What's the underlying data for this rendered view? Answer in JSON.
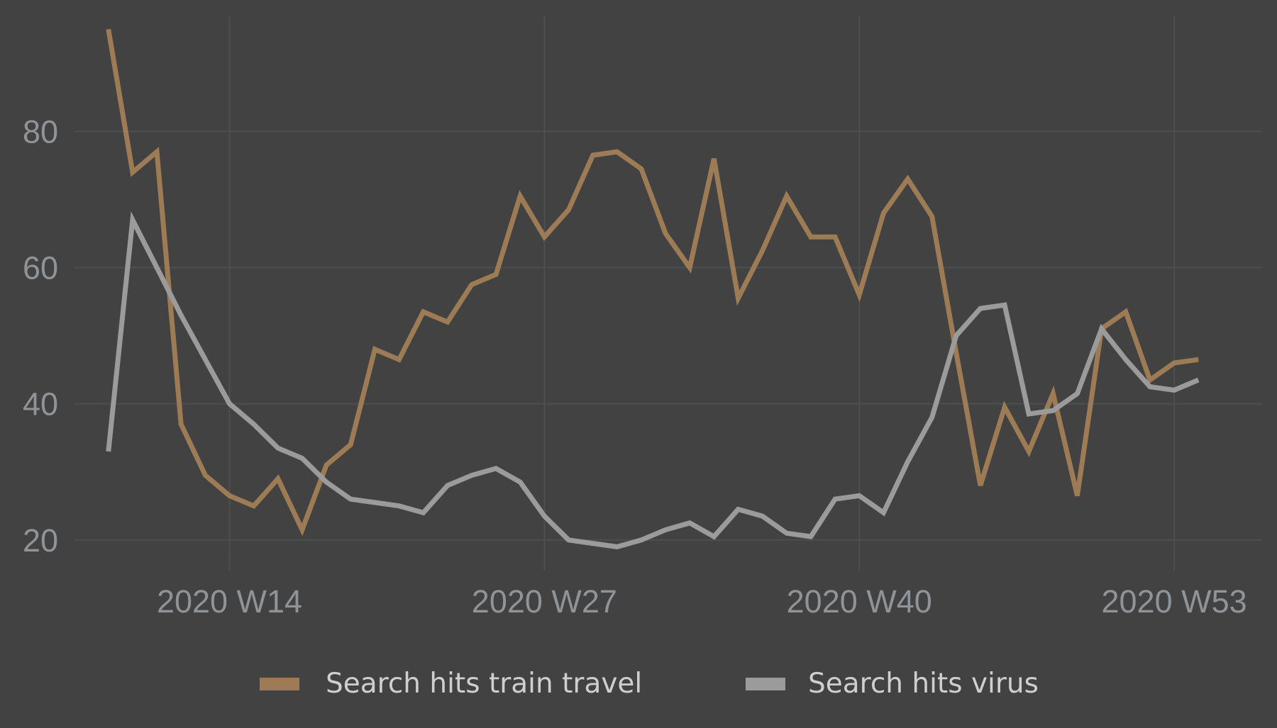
{
  "chart_data": {
    "type": "line",
    "title": "",
    "xlabel": "",
    "ylabel": "",
    "x_tick_labels": [
      "2020 W14",
      "2020 W27",
      "2020 W40",
      "2020 W53"
    ],
    "x_tick_weeks": [
      14,
      27,
      40,
      53
    ],
    "y_ticks": [
      20,
      40,
      60,
      80
    ],
    "xlim_weeks": [
      7.6,
      56.6
    ],
    "ylim": [
      15.5,
      97
    ],
    "grid": true,
    "legend_position": "bottom",
    "x_weeks": [
      9,
      10,
      11,
      12,
      13,
      14,
      15,
      16,
      17,
      18,
      19,
      20,
      21,
      22,
      23,
      24,
      25,
      26,
      27,
      28,
      29,
      30,
      31,
      32,
      33,
      34,
      35,
      36,
      37,
      38,
      39,
      40,
      41,
      42,
      43,
      44,
      45,
      46,
      47,
      48,
      49,
      50,
      51,
      52,
      53,
      54
    ],
    "series": [
      {
        "name": "Search hits train travel",
        "color": "#9d7b55",
        "values": [
          95,
          74,
          77,
          37,
          29.5,
          26.5,
          25,
          29,
          21.5,
          31,
          34,
          48,
          46.5,
          53.5,
          52,
          57.5,
          59,
          70.5,
          64.5,
          68.5,
          76.5,
          77,
          74.5,
          65,
          60,
          76,
          55.5,
          62.5,
          70.5,
          64.5,
          64.5,
          56,
          68,
          73,
          67.5,
          47.5,
          28,
          39.5,
          33,
          41.5,
          26.5,
          51,
          53.5,
          43.5,
          46,
          46.5
        ]
      },
      {
        "name": "Search hits virus",
        "color": "#9b9b9b",
        "values": [
          33,
          67,
          60,
          53,
          46.5,
          40,
          37,
          33.5,
          32,
          28.5,
          26,
          25.5,
          25,
          24,
          28,
          29.5,
          30.5,
          28.5,
          23.5,
          20,
          19.5,
          19,
          20,
          21.5,
          22.5,
          20.5,
          24.5,
          23.5,
          21,
          20.5,
          26,
          26.5,
          24,
          31.5,
          38,
          50,
          54,
          54.5,
          38.5,
          39,
          41.5,
          51,
          46.5,
          42.5,
          42,
          43.5
        ]
      }
    ]
  }
}
